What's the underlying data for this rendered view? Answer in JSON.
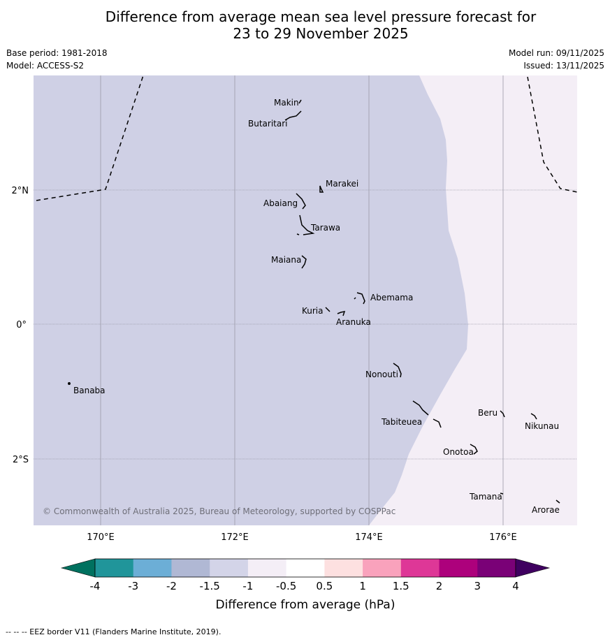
{
  "header": {
    "title_line1": "Difference from average mean sea level pressure forecast for",
    "title_line2": "23 to 29 November 2025",
    "base_period": "Base period: 1981-2018",
    "model": "Model: ACCESS-S2",
    "model_run": "Model run: 09/11/2025",
    "issued": "Issued: 13/11/2025"
  },
  "map": {
    "lat_labels": [
      "2°N",
      "0°",
      "2°S"
    ],
    "lon_labels": [
      "170°E",
      "172°E",
      "174°E",
      "176°E"
    ],
    "copyright": "© Commonwealth of Australia 2025, Bureau of Meteorology, supported by COSPPac",
    "anomaly_fill_colors": {
      "negative_1_5_to_1": "#cfd0e5",
      "negative_1_to_0_5": "#f4eef6"
    },
    "places": [
      {
        "name": "Makin"
      },
      {
        "name": "Butaritari"
      },
      {
        "name": "Marakei"
      },
      {
        "name": "Abaiang"
      },
      {
        "name": "Tarawa"
      },
      {
        "name": "Maiana"
      },
      {
        "name": "Abemama"
      },
      {
        "name": "Kuria"
      },
      {
        "name": "Aranuka"
      },
      {
        "name": "Banaba"
      },
      {
        "name": "Nonouti"
      },
      {
        "name": "Tabiteuea"
      },
      {
        "name": "Beru"
      },
      {
        "name": "Nikunau"
      },
      {
        "name": "Onotoa"
      },
      {
        "name": "Tamana"
      },
      {
        "name": "Arorae"
      }
    ]
  },
  "colorbar": {
    "label": "Difference from average (hPa)",
    "ticks": [
      "-4",
      "-3",
      "-2",
      "-1.5",
      "-1",
      "-0.5",
      "0.5",
      "1",
      "1.5",
      "2",
      "3",
      "4"
    ],
    "under_color": "#00715f",
    "over_color": "#3f0060",
    "segment_colors": [
      "#20959a",
      "#6caed6",
      "#b0b8d4",
      "#d3d4e8",
      "#f4eef6",
      "#ffffff",
      "#fde0e0",
      "#f9a2bc",
      "#de3797",
      "#ad017c",
      "#7a0177"
    ]
  },
  "footer": {
    "eez_note": "--  --  -- EEZ border V11 (Flanders Marine Institute, 2019)."
  }
}
